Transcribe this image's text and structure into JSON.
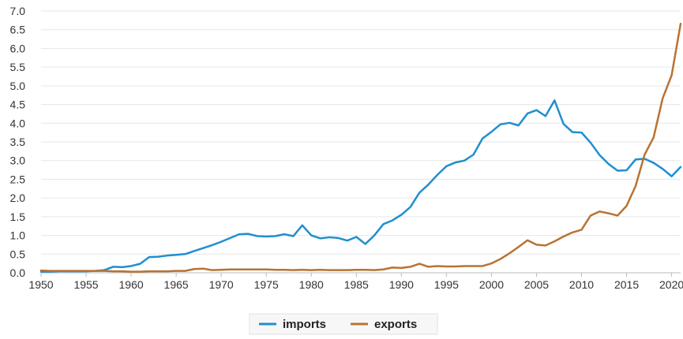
{
  "chart_data": {
    "type": "line",
    "title": "",
    "xlabel": "",
    "ylabel": "",
    "xlim": [
      1950,
      2021
    ],
    "ylim": [
      0,
      7
    ],
    "grid": true,
    "legend_position": "bottom-center",
    "x_ticks": [
      "1950",
      "1955",
      "1960",
      "1965",
      "1970",
      "1975",
      "1980",
      "1985",
      "1990",
      "1995",
      "2000",
      "2005",
      "2010",
      "2015",
      "2020"
    ],
    "y_ticks": [
      "0.0",
      "0.5",
      "1.0",
      "1.5",
      "2.0",
      "2.5",
      "3.0",
      "3.5",
      "4.0",
      "4.5",
      "5.0",
      "5.5",
      "6.0",
      "6.5",
      "7.0"
    ],
    "x": [
      1950,
      1951,
      1952,
      1953,
      1954,
      1955,
      1956,
      1957,
      1958,
      1959,
      1960,
      1961,
      1962,
      1963,
      1964,
      1965,
      1966,
      1967,
      1968,
      1969,
      1970,
      1971,
      1972,
      1973,
      1974,
      1975,
      1976,
      1977,
      1978,
      1979,
      1980,
      1981,
      1982,
      1983,
      1984,
      1985,
      1986,
      1987,
      1988,
      1989,
      1990,
      1991,
      1992,
      1993,
      1994,
      1995,
      1996,
      1997,
      1998,
      1999,
      2000,
      2001,
      2002,
      2003,
      2004,
      2005,
      2006,
      2007,
      2008,
      2009,
      2010,
      2011,
      2012,
      2013,
      2014,
      2015,
      2016,
      2017,
      2018,
      2019,
      2020,
      2021
    ],
    "series": [
      {
        "name": "imports",
        "color": "#1f8fd0",
        "values": [
          0.03,
          0.03,
          0.04,
          0.04,
          0.04,
          0.04,
          0.05,
          0.07,
          0.16,
          0.15,
          0.18,
          0.24,
          0.42,
          0.43,
          0.46,
          0.48,
          0.5,
          0.58,
          0.66,
          0.74,
          0.83,
          0.93,
          1.03,
          1.04,
          0.98,
          0.97,
          0.98,
          1.03,
          0.98,
          1.27,
          1.0,
          0.92,
          0.95,
          0.93,
          0.86,
          0.96,
          0.77,
          1.0,
          1.3,
          1.4,
          1.55,
          1.76,
          2.14,
          2.36,
          2.62,
          2.85,
          2.95,
          3.0,
          3.16,
          3.59,
          3.77,
          3.97,
          4.01,
          3.94,
          4.26,
          4.35,
          4.19,
          4.61,
          3.98,
          3.76,
          3.75,
          3.48,
          3.15,
          2.91,
          2.73,
          2.74,
          3.03,
          3.05,
          2.94,
          2.78,
          2.58,
          2.83
        ]
      },
      {
        "name": "exports",
        "color": "#b87333",
        "values": [
          0.06,
          0.05,
          0.05,
          0.05,
          0.05,
          0.05,
          0.05,
          0.05,
          0.04,
          0.04,
          0.03,
          0.03,
          0.04,
          0.04,
          0.04,
          0.05,
          0.05,
          0.1,
          0.11,
          0.07,
          0.08,
          0.09,
          0.09,
          0.09,
          0.09,
          0.09,
          0.08,
          0.08,
          0.07,
          0.08,
          0.07,
          0.08,
          0.07,
          0.07,
          0.07,
          0.08,
          0.08,
          0.07,
          0.09,
          0.14,
          0.13,
          0.16,
          0.24,
          0.16,
          0.18,
          0.17,
          0.17,
          0.18,
          0.18,
          0.18,
          0.25,
          0.37,
          0.52,
          0.69,
          0.87,
          0.75,
          0.73,
          0.84,
          0.97,
          1.08,
          1.15,
          1.53,
          1.64,
          1.59,
          1.53,
          1.79,
          2.32,
          3.16,
          3.62,
          4.66,
          5.28,
          6.66
        ]
      }
    ]
  }
}
